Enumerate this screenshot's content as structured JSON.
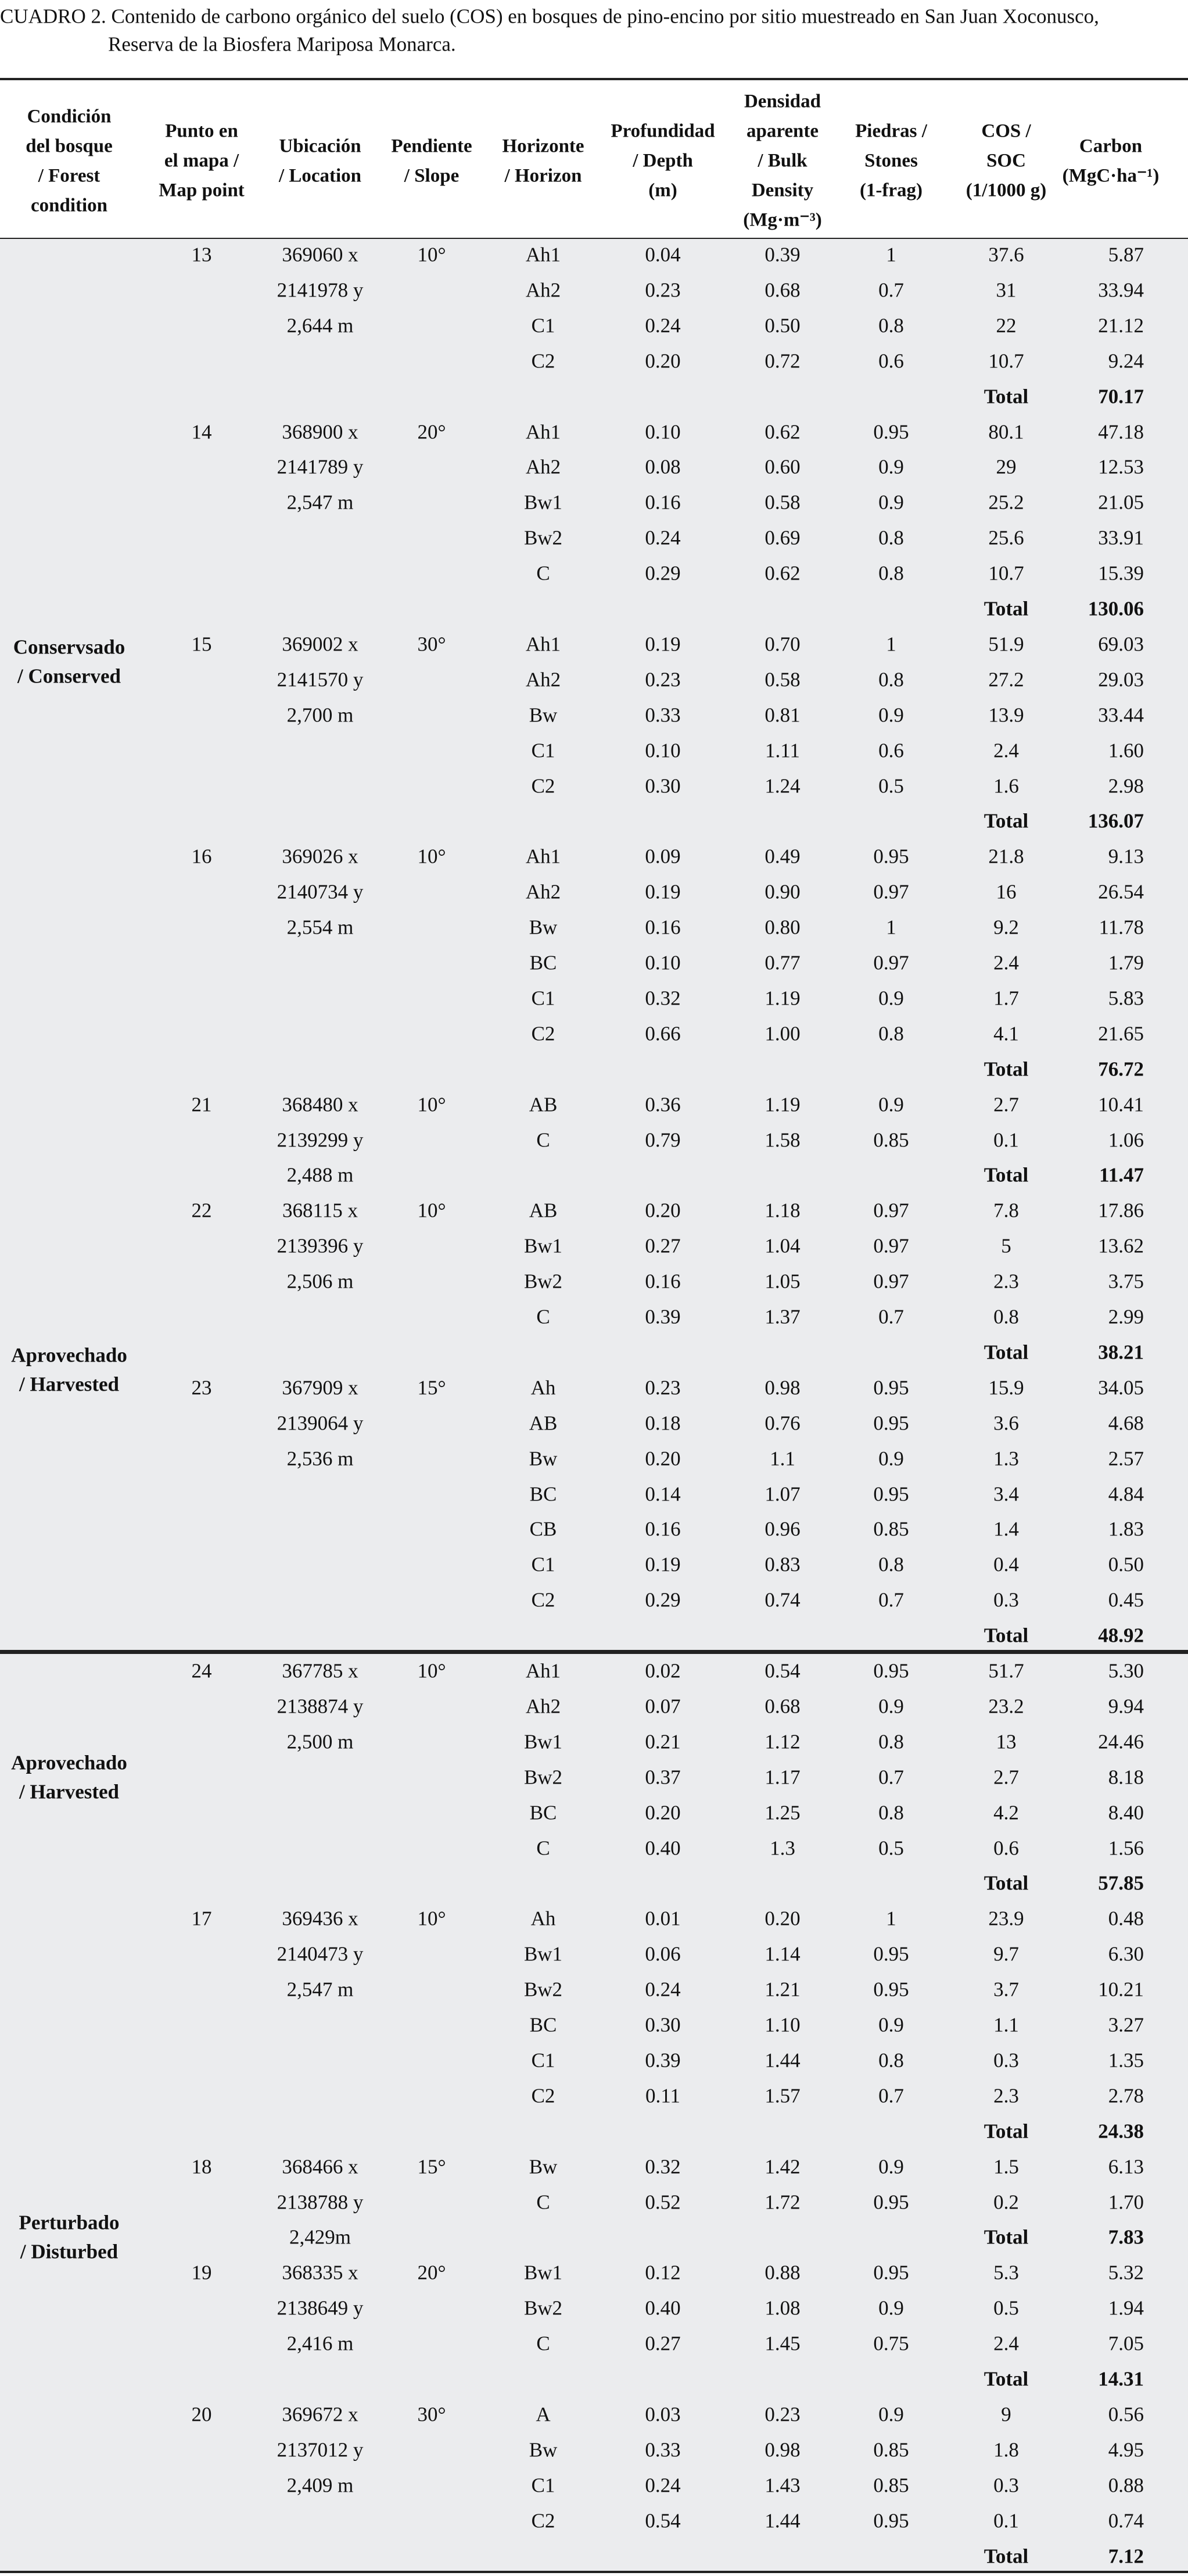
{
  "title": [
    "CUADRO 2. Contenido de carbono orgánico del suelo (COS) en bosques de pino-encino por sitio muestreado en San Juan Xoconusco,",
    "Reserva de la Biosfera Mariposa Monarca."
  ],
  "header": [
    [
      "Condición",
      "del bosque",
      "/ Forest",
      "condition"
    ],
    [
      "Punto en",
      "el mapa  /",
      "Map point"
    ],
    [
      "Ubicación",
      "/ Location"
    ],
    [
      "Pendiente",
      "/ Slope"
    ],
    [
      "Horizonte",
      "/ Horizon"
    ],
    [
      "Profundidad",
      "/ Depth",
      "(m)"
    ],
    [
      "Densidad",
      "aparente",
      "/ Bulk",
      "Density",
      "(Mg·m⁻³)"
    ],
    [
      "Piedras /",
      "Stones",
      "(1-frag)"
    ],
    [
      "COS /",
      "SOC",
      "(1/1000 g)"
    ],
    [
      "Carbon",
      "(MgC·ha⁻¹)"
    ]
  ],
  "sections": [
    {
      "groups": [
        {
          "condition": [
            "Conservsado",
            "/ Conserved"
          ],
          "sites": [
            {
              "point": "13",
              "location": [
                "369060 x",
                "2141978 y",
                "2,644 m"
              ],
              "slope": "10°",
              "horizons": [
                [
                  "Ah1",
                  "0.04",
                  "0.39",
                  "1",
                  "37.6",
                  "5.87"
                ],
                [
                  "Ah2",
                  "0.23",
                  "0.68",
                  "0.7",
                  "31",
                  "33.94"
                ],
                [
                  "C1",
                  "0.24",
                  "0.50",
                  "0.8",
                  "22",
                  "21.12"
                ],
                [
                  "C2",
                  "0.20",
                  "0.72",
                  "0.6",
                  "10.7",
                  "9.24"
                ]
              ],
              "total": {
                "label": "Total",
                "value": "70.17"
              }
            },
            {
              "point": "14",
              "location": [
                "368900 x",
                "2141789 y",
                "2,547 m"
              ],
              "slope": "20°",
              "horizons": [
                [
                  "Ah1",
                  "0.10",
                  "0.62",
                  "0.95",
                  "80.1",
                  "47.18"
                ],
                [
                  "Ah2",
                  "0.08",
                  "0.60",
                  "0.9",
                  "29",
                  "12.53"
                ],
                [
                  "Bw1",
                  "0.16",
                  "0.58",
                  "0.9",
                  "25.2",
                  "21.05"
                ],
                [
                  "Bw2",
                  "0.24",
                  "0.69",
                  "0.8",
                  "25.6",
                  "33.91"
                ],
                [
                  "C",
                  "0.29",
                  "0.62",
                  "0.8",
                  "10.7",
                  "15.39"
                ]
              ],
              "total": {
                "label": "Total",
                "value": "130.06"
              }
            },
            {
              "point": "15",
              "location": [
                "369002 x",
                "2141570 y",
                "2,700 m"
              ],
              "slope": "30°",
              "horizons": [
                [
                  "Ah1",
                  "0.19",
                  "0.70",
                  "1",
                  "51.9",
                  "69.03"
                ],
                [
                  "Ah2",
                  "0.23",
                  "0.58",
                  "0.8",
                  "27.2",
                  "29.03"
                ],
                [
                  "Bw",
                  "0.33",
                  "0.81",
                  "0.9",
                  "13.9",
                  "33.44"
                ],
                [
                  "C1",
                  "0.10",
                  "1.11",
                  "0.6",
                  "2.4",
                  "1.60"
                ],
                [
                  "C2",
                  "0.30",
                  "1.24",
                  "0.5",
                  "1.6",
                  "2.98"
                ]
              ],
              "total": {
                "label": "Total",
                "value": "136.07"
              }
            },
            {
              "point": "16",
              "location": [
                "369026 x",
                "2140734 y",
                "2,554 m"
              ],
              "slope": "10°",
              "horizons": [
                [
                  "Ah1",
                  "0.09",
                  "0.49",
                  "0.95",
                  "21.8",
                  "9.13"
                ],
                [
                  "Ah2",
                  "0.19",
                  "0.90",
                  "0.97",
                  "16",
                  "26.54"
                ],
                [
                  "Bw",
                  "0.16",
                  "0.80",
                  "1",
                  "9.2",
                  "11.78"
                ],
                [
                  "BC",
                  "0.10",
                  "0.77",
                  "0.97",
                  "2.4",
                  "1.79"
                ],
                [
                  "C1",
                  "0.32",
                  "1.19",
                  "0.9",
                  "1.7",
                  "5.83"
                ],
                [
                  "C2",
                  "0.66",
                  "1.00",
                  "0.8",
                  "4.1",
                  "21.65"
                ]
              ],
              "total": {
                "label": "Total",
                "value": "76.72"
              }
            }
          ]
        },
        {
          "condition": [
            "Aprovechado",
            "/ Harvested"
          ],
          "sites": [
            {
              "point": "21",
              "location": [
                "368480 x",
                "2139299 y",
                "2,488 m"
              ],
              "slope": "10°",
              "horizons": [
                [
                  "AB",
                  "0.36",
                  "1.19",
                  "0.9",
                  "2.7",
                  "10.41"
                ],
                [
                  "C",
                  "0.79",
                  "1.58",
                  "0.85",
                  "0.1",
                  "1.06"
                ]
              ],
              "total": {
                "label": "Total",
                "value": "11.47"
              }
            },
            {
              "point": "22",
              "location": [
                "368115 x",
                "2139396 y",
                "2,506 m"
              ],
              "slope": "10°",
              "horizons": [
                [
                  "AB",
                  "0.20",
                  "1.18",
                  "0.97",
                  "7.8",
                  "17.86"
                ],
                [
                  "Bw1",
                  "0.27",
                  "1.04",
                  "0.97",
                  "5",
                  "13.62"
                ],
                [
                  "Bw2",
                  "0.16",
                  "1.05",
                  "0.97",
                  "2.3",
                  "3.75"
                ],
                [
                  "C",
                  "0.39",
                  "1.37",
                  "0.7",
                  "0.8",
                  "2.99"
                ]
              ],
              "total": {
                "label": "Total",
                "value": "38.21"
              }
            },
            {
              "point": "23",
              "location": [
                "367909 x",
                "2139064 y",
                "2,536 m"
              ],
              "slope": "15°",
              "horizons": [
                [
                  "Ah",
                  "0.23",
                  "0.98",
                  "0.95",
                  "15.9",
                  "34.05"
                ],
                [
                  "AB",
                  "0.18",
                  "0.76",
                  "0.95",
                  "3.6",
                  "4.68"
                ],
                [
                  "Bw",
                  "0.20",
                  "1.1",
                  "0.9",
                  "1.3",
                  "2.57"
                ],
                [
                  "BC",
                  "0.14",
                  "1.07",
                  "0.95",
                  "3.4",
                  "4.84"
                ],
                [
                  "CB",
                  "0.16",
                  "0.96",
                  "0.85",
                  "1.4",
                  "1.83"
                ],
                [
                  "C1",
                  "0.19",
                  "0.83",
                  "0.8",
                  "0.4",
                  "0.50"
                ],
                [
                  "C2",
                  "0.29",
                  "0.74",
                  "0.7",
                  "0.3",
                  "0.45"
                ]
              ],
              "total": {
                "label": "Total",
                "value": "48.92"
              }
            }
          ]
        }
      ]
    },
    {
      "groups": [
        {
          "condition": [
            "Aprovechado",
            "/ Harvested"
          ],
          "sites": [
            {
              "point": "24",
              "location": [
                "367785 x",
                "2138874 y",
                "2,500 m"
              ],
              "slope": "10°",
              "horizons": [
                [
                  "Ah1",
                  "0.02",
                  "0.54",
                  "0.95",
                  "51.7",
                  "5.30"
                ],
                [
                  "Ah2",
                  "0.07",
                  "0.68",
                  "0.9",
                  "23.2",
                  "9.94"
                ],
                [
                  "Bw1",
                  "0.21",
                  "1.12",
                  "0.8",
                  "13",
                  "24.46"
                ],
                [
                  "Bw2",
                  "0.37",
                  "1.17",
                  "0.7",
                  "2.7",
                  "8.18"
                ],
                [
                  "BC",
                  "0.20",
                  "1.25",
                  "0.8",
                  "4.2",
                  "8.40"
                ],
                [
                  "C",
                  "0.40",
                  "1.3",
                  "0.5",
                  "0.6",
                  "1.56"
                ]
              ],
              "total": {
                "label": "Total",
                "value": "57.85"
              }
            }
          ]
        },
        {
          "condition": [
            "Perturbado",
            "/ Disturbed"
          ],
          "sites": [
            {
              "point": "17",
              "location": [
                "369436 x",
                "2140473 y",
                "2,547 m"
              ],
              "slope": "10°",
              "horizons": [
                [
                  "Ah",
                  "0.01",
                  "0.20",
                  "1",
                  "23.9",
                  "0.48"
                ],
                [
                  "Bw1",
                  "0.06",
                  "1.14",
                  "0.95",
                  "9.7",
                  "6.30"
                ],
                [
                  "Bw2",
                  "0.24",
                  "1.21",
                  "0.95",
                  "3.7",
                  "10.21"
                ],
                [
                  "BC",
                  "0.30",
                  "1.10",
                  "0.9",
                  "1.1",
                  "3.27"
                ],
                [
                  "C1",
                  "0.39",
                  "1.44",
                  "0.8",
                  "0.3",
                  "1.35"
                ],
                [
                  "C2",
                  "0.11",
                  "1.57",
                  "0.7",
                  "2.3",
                  "2.78"
                ]
              ],
              "total": {
                "label": "Total",
                "value": "24.38"
              }
            },
            {
              "point": "18",
              "location": [
                "368466 x",
                "2138788 y",
                "2,429m"
              ],
              "slope": "15°",
              "horizons": [
                [
                  "Bw",
                  "0.32",
                  "1.42",
                  "0.9",
                  "1.5",
                  "6.13"
                ],
                [
                  "C",
                  "0.52",
                  "1.72",
                  "0.95",
                  "0.2",
                  "1.70"
                ]
              ],
              "total": {
                "label": "Total",
                "value": "7.83"
              }
            },
            {
              "point": "19",
              "location": [
                "368335 x",
                "2138649 y",
                "2,416 m"
              ],
              "slope": "20°",
              "horizons": [
                [
                  "Bw1",
                  "0.12",
                  "0.88",
                  "0.95",
                  "5.3",
                  "5.32"
                ],
                [
                  "Bw2",
                  "0.40",
                  "1.08",
                  "0.9",
                  "0.5",
                  "1.94"
                ],
                [
                  "C",
                  "0.27",
                  "1.45",
                  "0.75",
                  "2.4",
                  "7.05"
                ]
              ],
              "total": {
                "label": "Total",
                "value": "14.31"
              }
            },
            {
              "point": "20",
              "location": [
                "369672 x",
                "2137012 y",
                "2,409 m"
              ],
              "slope": "30°",
              "horizons": [
                [
                  "A",
                  "0.03",
                  "0.23",
                  "0.9",
                  "9",
                  "0.56"
                ],
                [
                  "Bw",
                  "0.33",
                  "0.98",
                  "0.85",
                  "1.8",
                  "4.95"
                ],
                [
                  "C1",
                  "0.24",
                  "1.43",
                  "0.85",
                  "0.3",
                  "0.88"
                ],
                [
                  "C2",
                  "0.54",
                  "1.44",
                  "0.95",
                  "0.1",
                  "0.74"
                ]
              ],
              "total": {
                "label": "Total",
                "value": "7.12"
              }
            }
          ]
        }
      ]
    }
  ]
}
